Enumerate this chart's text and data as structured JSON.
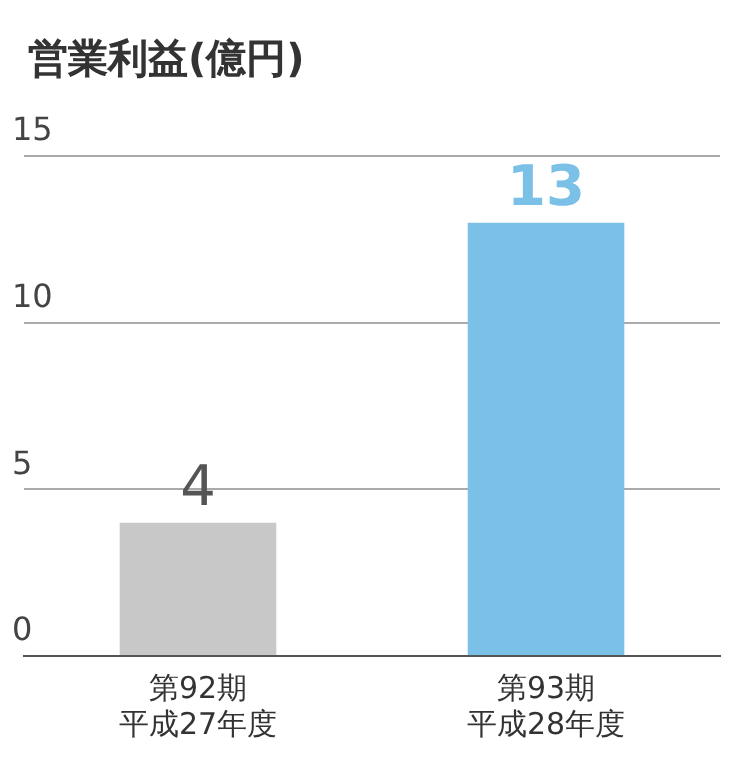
{
  "chart_data": {
    "type": "bar",
    "title": "営業利益(億円)",
    "categories": [
      "第92期平成27年度",
      "第93期平成28年度"
    ],
    "values": [
      4,
      13
    ],
    "colors": [
      "#c8c8c8",
      "#7bc0e6"
    ],
    "ylim": [
      0,
      15
    ],
    "yticks": [
      0,
      5,
      10,
      15
    ],
    "grid": "y",
    "data_labels": true,
    "legend": false
  }
}
